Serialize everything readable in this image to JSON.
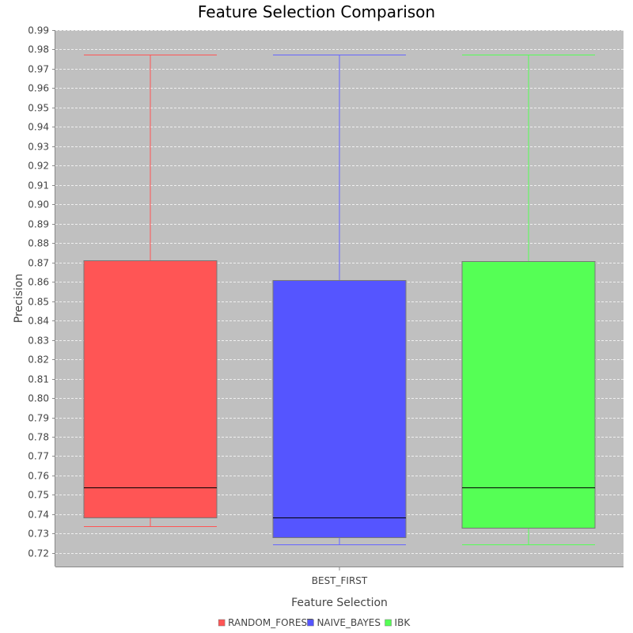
{
  "chart_data": {
    "type": "boxplot",
    "title": "Feature Selection Comparison",
    "xlabel": "Feature Selection",
    "ylabel": "Precision",
    "categories": [
      "BEST_FIRST"
    ],
    "ylim": [
      0.713,
      0.99
    ],
    "yticks": [
      "0.72",
      "0.73",
      "0.74",
      "0.75",
      "0.76",
      "0.77",
      "0.78",
      "0.79",
      "0.80",
      "0.81",
      "0.82",
      "0.83",
      "0.84",
      "0.85",
      "0.86",
      "0.87",
      "0.88",
      "0.89",
      "0.90",
      "0.91",
      "0.92",
      "0.93",
      "0.94",
      "0.95",
      "0.96",
      "0.97",
      "0.98",
      "0.99"
    ],
    "grid": true,
    "legend_position": "bottom",
    "plot_background": "#c0c0c0",
    "series": [
      {
        "name": "RANDOM_FOREST",
        "color": "#ff5555",
        "whisker_color": "#ff5555",
        "min": 0.734,
        "q1": 0.7385,
        "median": 0.754,
        "q3": 0.871,
        "max": 0.9775
      },
      {
        "name": "NAIVE_BAYES",
        "color": "#5555ff",
        "whisker_color": "#6666ff",
        "min": 0.7245,
        "q1": 0.728,
        "median": 0.7385,
        "q3": 0.861,
        "max": 0.9775
      },
      {
        "name": "IBK",
        "color": "#55ff55",
        "whisker_color": "#55ff55",
        "min": 0.7245,
        "q1": 0.733,
        "median": 0.754,
        "q3": 0.8705,
        "max": 0.9775
      }
    ]
  }
}
